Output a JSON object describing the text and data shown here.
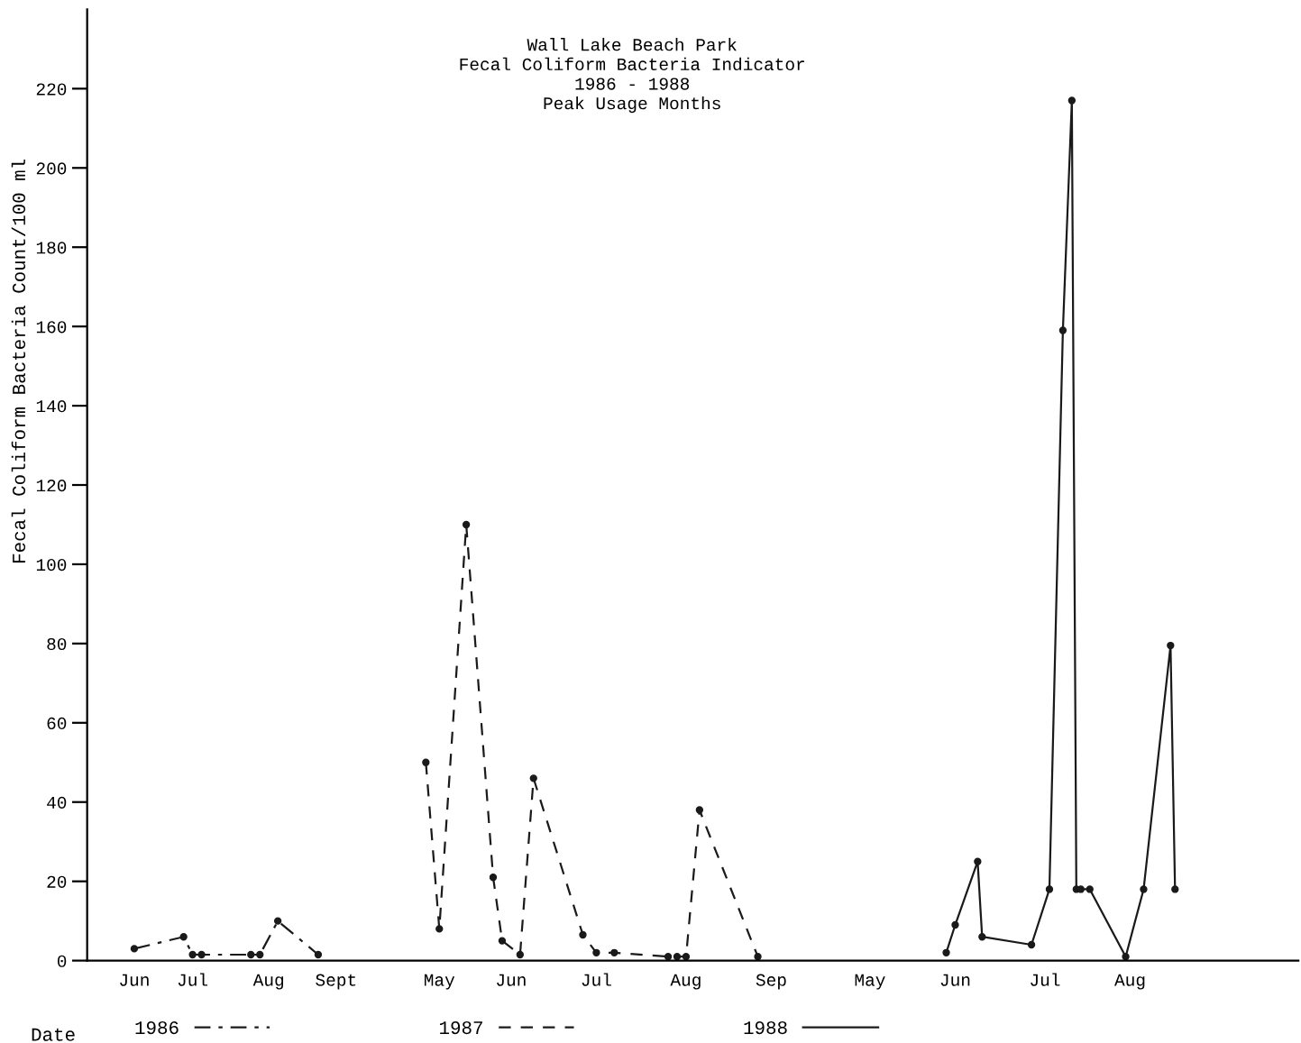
{
  "chart_data": {
    "type": "line",
    "title": "Wall Lake Beach Park\nFecal Coliform Bacteria Indicator\n1986 - 1988\nPeak Usage Months",
    "xlabel": "Date",
    "ylabel": "Fecal Coliform Bacteria Count/100 ml",
    "categories": [
      null,
      null,
      null,
      null,
      null,
      null,
      null,
      null,
      null,
      null,
      "Jun",
      null,
      null,
      null,
      null,
      null,
      null,
      null,
      null,
      null,
      null,
      null,
      null,
      "Jul",
      null,
      null,
      null,
      null,
      null,
      null,
      null,
      null,
      null,
      null,
      null,
      null,
      null,
      null,
      null,
      null,
      "Aug",
      null,
      null,
      null,
      null,
      null,
      null,
      null,
      null,
      null,
      null,
      null,
      null,
      null,
      null,
      "Sept",
      null,
      null,
      null,
      null,
      null,
      null,
      null,
      null,
      null,
      null,
      null,
      null,
      null,
      null,
      null,
      null,
      null,
      null,
      null,
      null,
      null,
      null,
      "May",
      null,
      null,
      null,
      null,
      null,
      null,
      null,
      null,
      null,
      null,
      null,
      null,
      null,
      null,
      null,
      "Jun",
      null,
      null,
      null,
      null,
      null,
      null,
      null,
      null,
      null,
      null,
      null,
      null,
      null,
      null,
      null,
      null,
      null,
      null,
      "Jul",
      null,
      null,
      null,
      null,
      null,
      null,
      null,
      null,
      null,
      null,
      null,
      null,
      null,
      null,
      null,
      null,
      null,
      null,
      null,
      "Aug",
      null,
      null,
      null,
      null,
      null,
      null,
      null,
      null,
      null,
      null,
      null,
      null,
      null,
      null,
      null,
      null,
      null,
      null,
      "Sep",
      null,
      null,
      null,
      null,
      null,
      null,
      null,
      null,
      null,
      null,
      null,
      null,
      null,
      null,
      null,
      null,
      null,
      null,
      null,
      null,
      null,
      "May",
      null,
      null,
      null,
      null,
      null,
      null,
      null,
      null,
      null,
      null,
      null,
      null,
      null,
      null,
      null,
      null,
      null,
      null,
      "Jun",
      null,
      null,
      null,
      null,
      null,
      null,
      null,
      null,
      null,
      null,
      null,
      null,
      null,
      null,
      null,
      null,
      null,
      null,
      null,
      "Jul",
      null,
      null,
      null,
      null,
      null,
      null,
      null,
      null,
      null,
      null,
      null,
      null,
      null,
      null,
      null,
      null,
      null,
      null,
      "Aug",
      null,
      null,
      null,
      null,
      null,
      null,
      null,
      null,
      null,
      null,
      null,
      null,
      null,
      null,
      null,
      null,
      null,
      null,
      null,
      null,
      null,
      null,
      null,
      null,
      null,
      null,
      null,
      null,
      null,
      null,
      null,
      null,
      null,
      null,
      null,
      null,
      null
    ],
    "ylim": [
      0,
      240
    ],
    "yticks": [
      0,
      20,
      40,
      60,
      80,
      100,
      120,
      140,
      160,
      180,
      200,
      220
    ],
    "grid": false,
    "legend": "bottom",
    "marker": "circle",
    "series": [
      {
        "name": "1986",
        "color": "#1a1a1a",
        "line_style": "dashdot",
        "values": [
          null,
          null,
          null,
          null,
          null,
          null,
          null,
          null,
          null,
          null,
          3,
          null,
          null,
          null,
          null,
          null,
          null,
          null,
          null,
          null,
          null,
          6,
          null,
          1.5,
          null,
          1.5,
          null,
          null,
          null,
          null,
          null,
          null,
          null,
          null,
          null,
          null,
          1.5,
          null,
          1.5,
          null,
          null,
          null,
          10,
          null,
          null,
          null,
          null,
          null,
          null,
          null,
          null,
          1.5,
          null,
          null,
          null,
          null,
          null,
          null,
          null,
          null,
          null,
          null,
          null,
          null,
          null,
          null,
          null,
          null,
          null,
          null,
          null,
          null,
          null,
          null,
          null,
          null,
          null,
          null,
          null,
          null,
          null,
          null,
          null,
          null,
          null,
          null,
          null,
          null,
          null,
          null,
          null,
          null,
          null,
          null,
          null,
          null,
          null,
          null,
          null,
          null,
          null,
          null,
          null,
          null,
          null,
          null,
          null,
          null,
          null,
          null,
          null,
          null,
          null,
          null,
          null,
          null,
          null,
          null,
          null,
          null,
          null,
          null,
          null,
          null,
          null,
          null,
          null,
          null,
          null,
          null,
          null,
          null,
          null,
          null,
          null,
          null,
          null,
          null,
          null,
          null,
          null,
          null,
          null,
          null,
          null,
          null,
          null,
          null,
          null,
          null,
          null,
          null,
          null,
          null,
          null,
          null,
          null,
          null,
          null,
          null,
          null,
          null,
          null,
          null,
          null,
          null,
          null,
          null,
          null,
          null,
          null,
          null,
          null,
          null,
          null,
          null,
          null,
          null,
          null,
          null,
          null,
          null,
          null,
          null,
          null,
          null,
          null,
          null,
          null,
          null,
          null,
          null,
          null,
          null,
          null,
          null,
          null,
          null,
          null,
          null,
          null,
          null,
          null,
          null,
          null,
          null,
          null,
          null,
          null,
          null,
          null,
          null,
          null,
          null,
          null,
          null,
          null,
          null,
          null,
          null,
          null,
          null,
          null,
          null,
          null,
          null,
          null,
          null,
          null,
          null,
          null,
          null,
          null,
          null,
          null,
          null,
          null,
          null,
          null,
          null,
          null,
          null,
          null,
          null,
          null,
          null,
          null,
          null,
          null,
          null,
          null,
          null,
          null,
          null,
          null,
          null,
          null,
          null,
          null,
          null,
          null,
          null,
          null,
          null,
          null,
          null,
          null,
          null,
          null,
          null
        ]
      },
      {
        "name": "1987",
        "color": "#1a1a1a",
        "line_style": "dashed",
        "values": [
          null,
          null,
          null,
          null,
          null,
          null,
          null,
          null,
          null,
          null,
          null,
          null,
          null,
          null,
          null,
          null,
          null,
          null,
          null,
          null,
          null,
          null,
          null,
          null,
          null,
          null,
          null,
          null,
          null,
          null,
          null,
          null,
          null,
          null,
          null,
          null,
          null,
          null,
          null,
          null,
          null,
          null,
          null,
          null,
          null,
          null,
          null,
          null,
          null,
          null,
          null,
          null,
          null,
          null,
          null,
          null,
          null,
          null,
          null,
          null,
          null,
          null,
          null,
          null,
          null,
          null,
          null,
          null,
          null,
          null,
          null,
          null,
          null,
          null,
          null,
          50,
          null,
          null,
          8,
          null,
          null,
          null,
          null,
          null,
          110,
          null,
          null,
          null,
          null,
          null,
          21,
          null,
          5,
          null,
          null,
          null,
          1.5,
          null,
          null,
          46,
          null,
          null,
          null,
          null,
          null,
          null,
          null,
          null,
          null,
          null,
          6.5,
          null,
          null,
          2,
          null,
          null,
          null,
          2,
          null,
          null,
          null,
          null,
          null,
          null,
          null,
          null,
          null,
          null,
          null,
          1,
          null,
          1,
          null,
          1,
          null,
          null,
          38,
          null,
          null,
          null,
          null,
          null,
          null,
          null,
          null,
          null,
          null,
          null,
          null,
          1,
          null,
          null,
          null,
          null,
          null,
          null,
          null,
          null,
          null,
          null,
          null,
          null,
          null,
          null,
          null,
          null,
          null,
          null,
          null,
          null,
          null,
          null,
          null,
          null,
          null,
          null,
          null,
          null,
          null,
          null,
          null,
          null,
          null,
          null,
          null,
          null,
          null,
          null,
          null,
          null,
          null,
          null,
          null,
          null,
          null,
          null,
          null,
          null,
          null,
          null,
          null,
          null,
          null,
          null,
          null,
          null,
          null,
          null,
          null,
          null,
          null,
          null,
          null,
          null,
          null,
          null,
          null,
          null,
          null,
          null,
          null,
          null,
          null,
          null,
          null,
          null,
          null,
          null,
          null,
          null,
          null,
          null,
          null,
          null,
          null,
          null,
          null,
          null,
          null,
          null,
          null,
          null,
          null,
          null,
          null,
          null,
          null,
          null,
          null,
          null,
          null,
          null,
          null,
          null,
          null,
          null,
          null,
          null,
          null,
          null,
          null,
          null,
          null,
          null,
          null,
          null,
          null,
          null,
          null,
          null
        ]
      },
      {
        "name": "1988",
        "color": "#1a1a1a",
        "line_style": "solid",
        "values": [
          null,
          null,
          null,
          null,
          null,
          null,
          null,
          null,
          null,
          null,
          null,
          null,
          null,
          null,
          null,
          null,
          null,
          null,
          null,
          null,
          null,
          null,
          null,
          null,
          null,
          null,
          null,
          null,
          null,
          null,
          null,
          null,
          null,
          null,
          null,
          null,
          null,
          null,
          null,
          null,
          null,
          null,
          null,
          null,
          null,
          null,
          null,
          null,
          null,
          null,
          null,
          null,
          null,
          null,
          null,
          null,
          null,
          null,
          null,
          null,
          null,
          null,
          null,
          null,
          null,
          null,
          null,
          null,
          null,
          null,
          null,
          null,
          null,
          null,
          null,
          null,
          null,
          null,
          null,
          null,
          null,
          null,
          null,
          null,
          null,
          null,
          null,
          null,
          null,
          null,
          null,
          null,
          null,
          null,
          null,
          null,
          null,
          null,
          null,
          null,
          null,
          null,
          null,
          null,
          null,
          null,
          null,
          null,
          null,
          null,
          null,
          null,
          null,
          null,
          null,
          null,
          null,
          null,
          null,
          null,
          null,
          null,
          null,
          null,
          null,
          null,
          null,
          null,
          null,
          null,
          null,
          null,
          null,
          null,
          null,
          null,
          null,
          null,
          null,
          null,
          null,
          null,
          null,
          null,
          null,
          null,
          null,
          null,
          null,
          null,
          null,
          null,
          null,
          null,
          null,
          null,
          null,
          null,
          null,
          null,
          null,
          null,
          null,
          null,
          null,
          null,
          null,
          null,
          null,
          null,
          null,
          null,
          null,
          null,
          null,
          null,
          null,
          null,
          null,
          null,
          null,
          null,
          null,
          null,
          null,
          null,
          null,
          null,
          null,
          null,
          null,
          2,
          null,
          9,
          null,
          null,
          null,
          null,
          25,
          6,
          null,
          null,
          null,
          null,
          null,
          null,
          null,
          null,
          null,
          null,
          4,
          null,
          null,
          null,
          18,
          null,
          null,
          159,
          null,
          217,
          18,
          18,
          null,
          18,
          null,
          null,
          null,
          null,
          null,
          null,
          null,
          1,
          null,
          null,
          null,
          18,
          null,
          null,
          null,
          null,
          null,
          79.5,
          18,
          null,
          null,
          null,
          null,
          null,
          null,
          null,
          null,
          null,
          null,
          null,
          null,
          null,
          null,
          null,
          null,
          null,
          null,
          null,
          null,
          null,
          null,
          null,
          null,
          null,
          null,
          null
        ]
      }
    ]
  }
}
